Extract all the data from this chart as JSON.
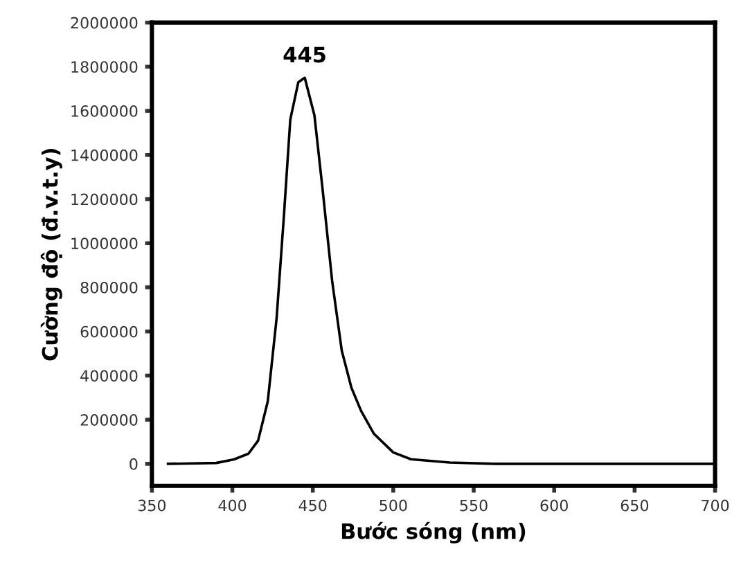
{
  "chart_data": {
    "type": "line",
    "xlabel": "Bước sóng (nm)",
    "ylabel": "Cường độ (đ.v.t.y)",
    "annotations": [
      {
        "text": "445",
        "x": 445,
        "y": 1750000
      }
    ],
    "series": [
      {
        "color": "#000000",
        "x": [
          360,
          390,
          401,
          410,
          416,
          422,
          427.5,
          432,
          436,
          441,
          445,
          451,
          456,
          462,
          468,
          474,
          480,
          488,
          500,
          511,
          535,
          563,
          600,
          650,
          700
        ],
        "values": [
          0,
          4000,
          20000,
          46000,
          105000,
          283000,
          660000,
          1120000,
          1560000,
          1730000,
          1750000,
          1580000,
          1250000,
          830000,
          513000,
          345000,
          240000,
          136000,
          52000,
          21000,
          6000,
          0,
          0,
          0,
          0
        ]
      }
    ],
    "xlim": [
      350,
      700
    ],
    "xticks": [
      350,
      400,
      450,
      500,
      550,
      600,
      650,
      700
    ],
    "ylim": [
      -100000,
      2000000
    ],
    "yticks": [
      0,
      200000,
      400000,
      600000,
      800000,
      1000000,
      1200000,
      1400000,
      1600000,
      1800000,
      2000000
    ],
    "grid": false,
    "legend": false,
    "marker": "none",
    "line_style": "solid"
  }
}
